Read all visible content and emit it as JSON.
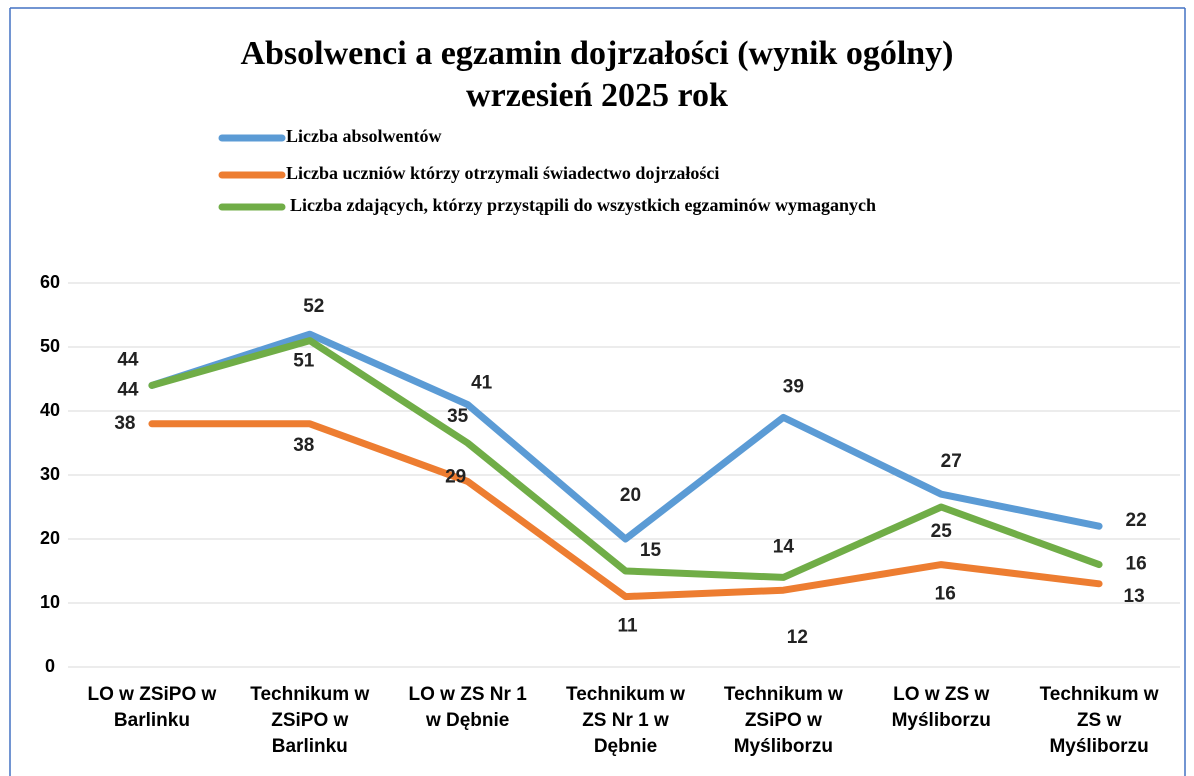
{
  "chart_data": {
    "type": "line",
    "title": "Absolwenci a egzamin dojrzałości (wynik ogólny)",
    "subtitle": "wrzesień 2025 rok",
    "categories": [
      "LO w ZSiPO w\nBarlinku",
      "Technikum w\nZSiPO w\nBarlinku",
      "LO w ZS Nr 1\nw Dębnie",
      "Technikum w\nZS Nr 1 w\nDębnie",
      "Technikum w\nZSiPO w\nMyśliborzu",
      "LO w ZS w\nMyśliborzu",
      "Technikum w\nZS w\nMyśliborzu"
    ],
    "series": [
      {
        "name": "Liczba absolwentów",
        "color": "#5b9bd5",
        "values": [
          44,
          52,
          41,
          20,
          39,
          27,
          22
        ]
      },
      {
        "name": "Liczba uczniów którzy otrzymali świadectwo dojrzałości",
        "color": "#ed7d31",
        "values": [
          38,
          38,
          29,
          11,
          12,
          16,
          13
        ]
      },
      {
        "name": "Liczba zdających, którzy przystąpili do wszystkich egzaminów wymaganych",
        "color": "#70ad47",
        "values": [
          44,
          51,
          35,
          15,
          14,
          25,
          16
        ]
      }
    ],
    "ylim": [
      0,
      60
    ],
    "yticks": [
      0,
      10,
      20,
      30,
      40,
      50,
      60
    ],
    "grid": true,
    "legend": "top"
  }
}
